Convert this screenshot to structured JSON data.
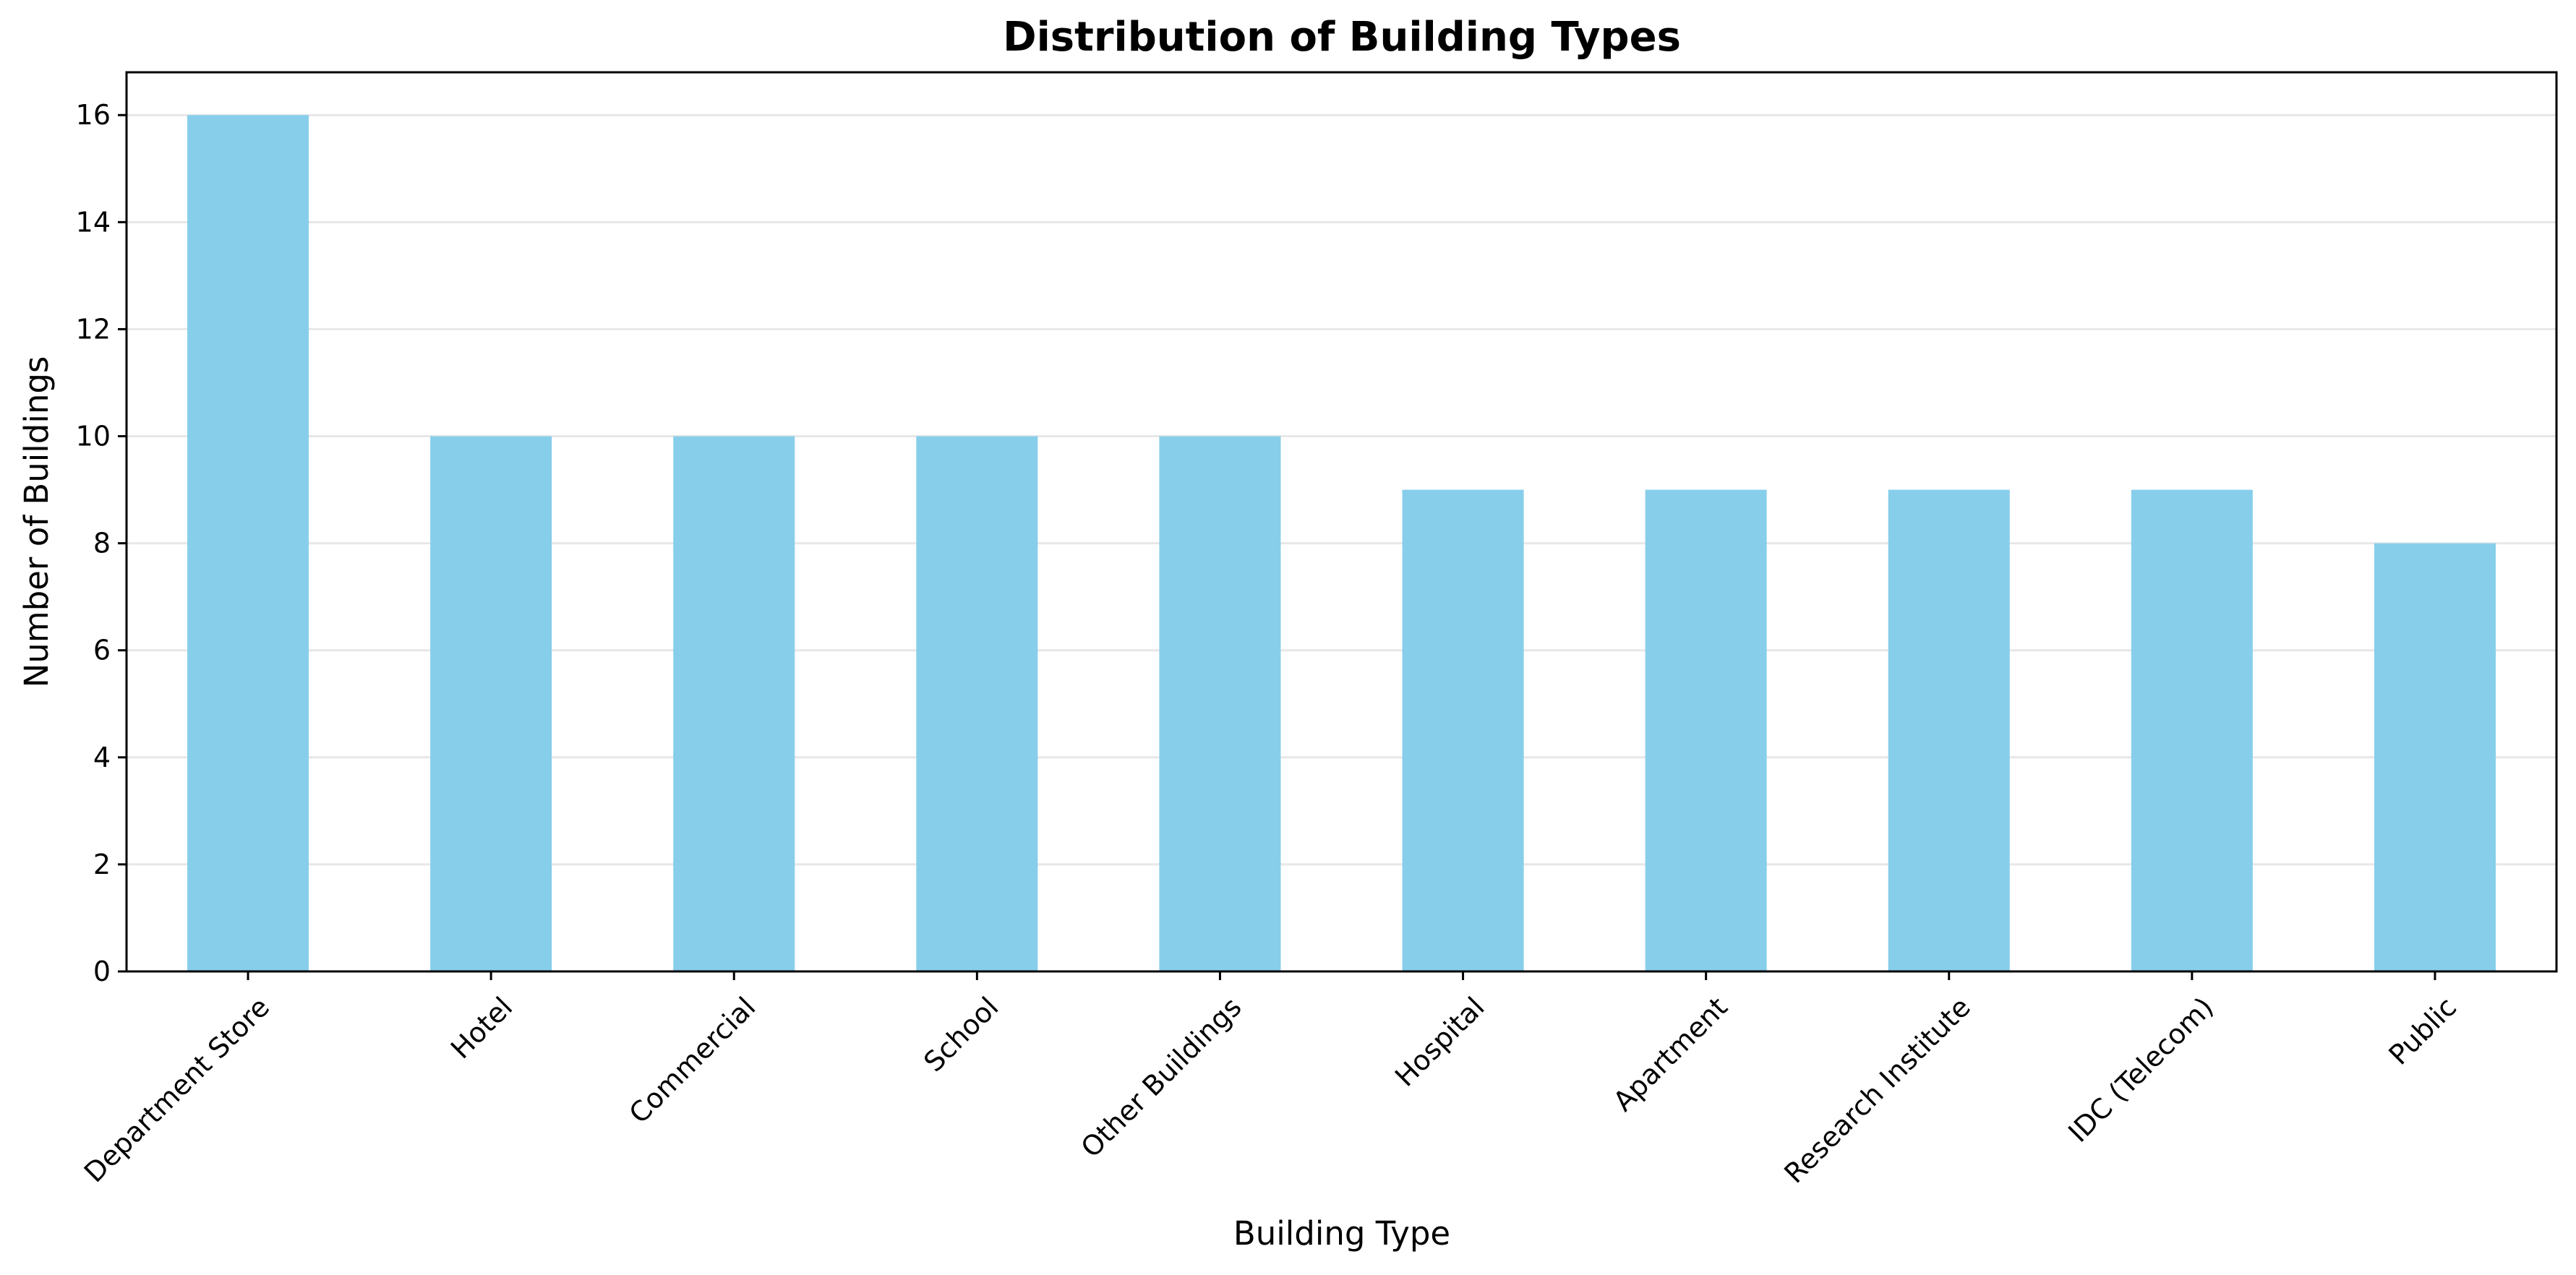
{
  "chart_data": {
    "type": "bar",
    "title": "Distribution of Building Types",
    "xlabel": "Building Type",
    "ylabel": "Number of Buildings",
    "categories": [
      "Department Store",
      "Hotel",
      "Commercial",
      "School",
      "Other Buildings",
      "Hospital",
      "Apartment",
      "Research Institute",
      "IDC (Telecom)",
      "Public"
    ],
    "values": [
      16,
      10,
      10,
      10,
      10,
      9,
      9,
      9,
      9,
      8
    ],
    "ylim": [
      0,
      16.8
    ],
    "yticks": [
      0,
      2,
      4,
      6,
      8,
      10,
      12,
      14,
      16
    ],
    "grid": "y",
    "bar_color": "#87CEEB",
    "legend": null
  }
}
